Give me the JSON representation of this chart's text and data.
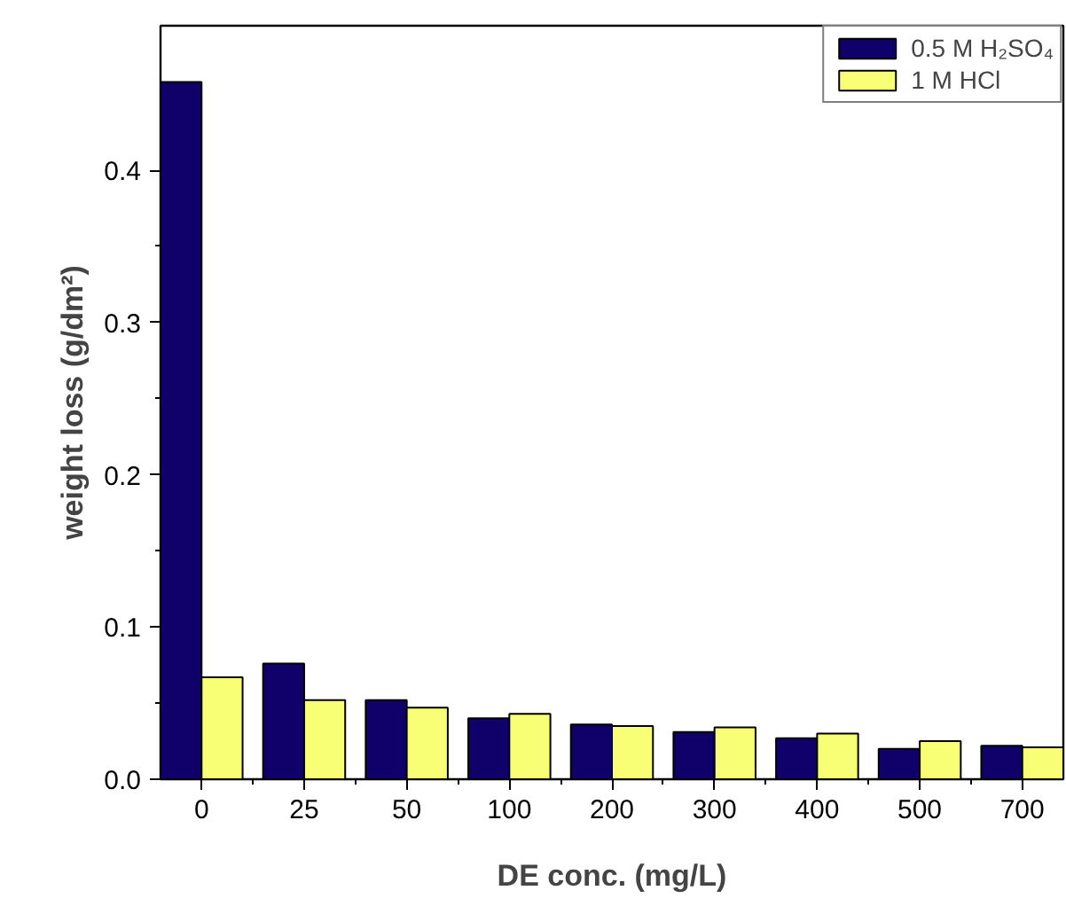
{
  "chart_data": {
    "type": "bar",
    "xlabel": "DE conc. (mg/L)",
    "ylabel": "weight loss (g/dm²)",
    "categories": [
      "0",
      "25",
      "50",
      "100",
      "200",
      "300",
      "400",
      "500",
      "700"
    ],
    "series": [
      {
        "name": "0.5 M H₂SO₄",
        "color": "#10006a",
        "values": [
          0.458,
          0.076,
          0.052,
          0.04,
          0.036,
          0.031,
          0.027,
          0.02,
          0.022
        ]
      },
      {
        "name": "1 M HCl",
        "color": "#f8ff74",
        "values": [
          0.067,
          0.052,
          0.047,
          0.043,
          0.035,
          0.034,
          0.03,
          0.025,
          0.021
        ]
      }
    ],
    "ylim": [
      0,
      0.495
    ],
    "yticks": [
      {
        "value": 0,
        "label": "0.0"
      },
      0.1,
      0.2,
      0.3,
      0.4
    ],
    "grid": false,
    "legend": "top right"
  }
}
